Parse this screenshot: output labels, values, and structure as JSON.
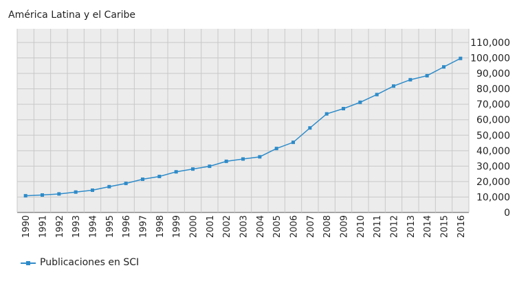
{
  "chart_data": {
    "type": "line",
    "title": "América Latina y el Caribe",
    "xlabel": "",
    "ylabel": "",
    "x": [
      "1990",
      "1991",
      "1992",
      "1993",
      "1994",
      "1995",
      "1996",
      "1997",
      "1998",
      "1999",
      "2000",
      "2001",
      "2002",
      "2003",
      "2004",
      "2005",
      "2006",
      "2007",
      "2008",
      "2009",
      "2010",
      "2011",
      "2012",
      "2013",
      "2014",
      "2015",
      "2016"
    ],
    "series": [
      {
        "name": "Publicaciones en SCI",
        "color": "#2e8bc9",
        "values": [
          10800,
          11300,
          12000,
          13200,
          14400,
          16700,
          18800,
          21500,
          23300,
          26300,
          28100,
          29900,
          33100,
          34600,
          36000,
          41400,
          45400,
          54700,
          63800,
          67200,
          71300,
          76300,
          81800,
          85900,
          88500,
          94200,
          99700
        ]
      }
    ],
    "ylim": [
      0,
      110000
    ],
    "yticks": [
      0,
      10000,
      20000,
      30000,
      40000,
      50000,
      60000,
      70000,
      80000,
      90000,
      100000,
      110000
    ],
    "ytick_labels": [
      "0",
      "10,000",
      "20,000",
      "30,000",
      "40,000",
      "50,000",
      "60,000",
      "70,000",
      "80,000",
      "90,000",
      "100,000",
      "110,000"
    ],
    "grid": true,
    "y_axis_position": "right",
    "legend_position": "bottom-left",
    "plot_background": "#ececec",
    "grid_color": "#c8c8c8"
  }
}
